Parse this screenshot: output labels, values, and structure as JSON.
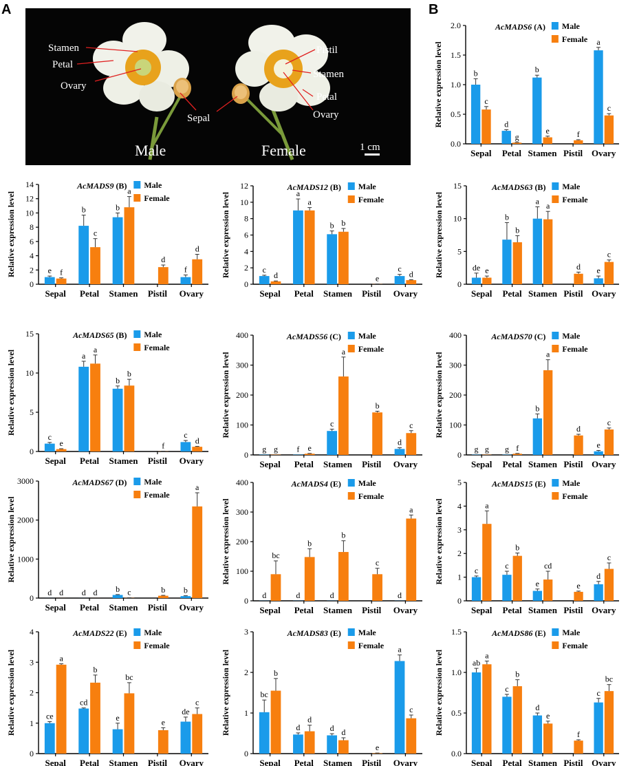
{
  "panel_labels": {
    "a": "A",
    "b": "B"
  },
  "photo": {
    "labels": {
      "stamen_left": "Stamen",
      "petal_left": "Petal",
      "ovary_left": "Ovary",
      "sepal": "Sepal",
      "pistil": "Pistil",
      "stamen_right": "Stamen",
      "petal_right": "Petal",
      "ovary_right": "Ovary",
      "male": "Male",
      "female": "Female",
      "scale": "1 cm"
    }
  },
  "colors": {
    "male": "#1a9bea",
    "female": "#f77f0f"
  },
  "chart_data": [
    {
      "type": "bar",
      "gene": "AcMADS6",
      "cls": "(A)",
      "categories": [
        "Sepal",
        "Petal",
        "Stamen",
        "Pistil",
        "Ovary"
      ],
      "ylim": [
        0,
        2.0
      ],
      "yticks": [
        "0.0",
        "0.5",
        "1.0",
        "1.5",
        "2.0"
      ],
      "ylabel": "Relative expression level",
      "legend": [
        "Male",
        "Female"
      ],
      "series": [
        {
          "name": "Male",
          "values": [
            1.0,
            0.22,
            1.12,
            0,
            1.58
          ],
          "errors": [
            0.1,
            0.02,
            0.04,
            0,
            0.05
          ],
          "labels": [
            "b",
            "d",
            "b",
            "",
            "a"
          ]
        },
        {
          "name": "Female",
          "values": [
            0.58,
            0.02,
            0.11,
            0.06,
            0.48
          ],
          "errors": [
            0.05,
            0.005,
            0.02,
            0.01,
            0.03
          ],
          "labels": [
            "c",
            "g",
            "e",
            "f",
            "c"
          ]
        }
      ]
    },
    {
      "type": "bar",
      "gene": "AcMADS9",
      "cls": "(B)",
      "categories": [
        "Sepal",
        "Petal",
        "Stamen",
        "Pistil",
        "Ovary"
      ],
      "ylim": [
        0,
        14
      ],
      "yticks": [
        "0",
        "2",
        "4",
        "6",
        "8",
        "10",
        "12",
        "14"
      ],
      "ylabel": "Relative expression level",
      "legend": [
        "Male",
        "Female"
      ],
      "series": [
        {
          "name": "Male",
          "values": [
            1.0,
            8.2,
            9.4,
            0,
            1.0
          ],
          "errors": [
            0.15,
            1.5,
            0.6,
            0,
            0.3
          ],
          "labels": [
            "e",
            "b",
            "b",
            "",
            "f"
          ]
        },
        {
          "name": "Female",
          "values": [
            0.8,
            5.2,
            10.8,
            2.4,
            3.5
          ],
          "errors": [
            0.1,
            1.2,
            1.5,
            0.3,
            0.7
          ],
          "labels": [
            "f",
            "c",
            "a",
            "d",
            "d"
          ]
        }
      ]
    },
    {
      "type": "bar",
      "gene": "AcMADS12",
      "cls": "(B)",
      "categories": [
        "Sepal",
        "Petal",
        "Stamen",
        "Pistil",
        "Ovary"
      ],
      "ylim": [
        0,
        12
      ],
      "yticks": [
        "0",
        "2",
        "4",
        "6",
        "8",
        "10",
        "12"
      ],
      "ylabel": "Relative expression level",
      "legend": [
        "Male",
        "Female"
      ],
      "series": [
        {
          "name": "Male",
          "values": [
            1.0,
            9.0,
            6.1,
            0,
            1.0
          ],
          "errors": [
            0.1,
            1.4,
            0.4,
            0,
            0.2
          ],
          "labels": [
            "c",
            "a",
            "b",
            "",
            "c"
          ]
        },
        {
          "name": "Female",
          "values": [
            0.35,
            9.0,
            6.4,
            0.02,
            0.5
          ],
          "errors": [
            0.05,
            0.35,
            0.4,
            0.01,
            0.05
          ],
          "labels": [
            "d",
            "a",
            "b",
            "e",
            "d"
          ]
        }
      ]
    },
    {
      "type": "bar",
      "gene": "AcMADS63",
      "cls": "(B)",
      "categories": [
        "Sepal",
        "Petal",
        "Stamen",
        "Pistil",
        "Ovary"
      ],
      "ylim": [
        0,
        15
      ],
      "yticks": [
        "0",
        "5",
        "10",
        "15"
      ],
      "ylabel": "Relative expression level",
      "legend": [
        "Male",
        "Female"
      ],
      "series": [
        {
          "name": "Male",
          "values": [
            1.0,
            6.8,
            10.0,
            0,
            0.9
          ],
          "errors": [
            0.7,
            2.6,
            1.8,
            0,
            0.35
          ],
          "labels": [
            "de",
            "b",
            "a",
            "",
            "e"
          ]
        },
        {
          "name": "Female",
          "values": [
            1.0,
            6.4,
            9.9,
            1.6,
            3.4
          ],
          "errors": [
            0.25,
            1.0,
            1.2,
            0.25,
            0.3
          ],
          "labels": [
            "e",
            "b",
            "a",
            "d",
            "c"
          ]
        }
      ]
    },
    {
      "type": "bar",
      "gene": "AcMADS65",
      "cls": "(B)",
      "categories": [
        "Sepal",
        "Petal",
        "Stamen",
        "Pistil",
        "Ovary"
      ],
      "ylim": [
        0,
        15
      ],
      "yticks": [
        "0",
        "5",
        "10",
        "15"
      ],
      "ylabel": "Relative expression level",
      "legend": [
        "Male",
        "Female"
      ],
      "series": [
        {
          "name": "Male",
          "values": [
            1.0,
            10.8,
            8.0,
            0,
            1.2
          ],
          "errors": [
            0.15,
            0.7,
            0.35,
            0,
            0.2
          ],
          "labels": [
            "c",
            "a",
            "b",
            "",
            "c"
          ]
        },
        {
          "name": "Female",
          "values": [
            0.3,
            11.2,
            8.4,
            0.02,
            0.6
          ],
          "errors": [
            0.05,
            1.1,
            0.8,
            0.01,
            0.05
          ],
          "labels": [
            "e",
            "a",
            "b",
            "f",
            "d"
          ]
        }
      ]
    },
    {
      "type": "bar",
      "gene": "AcMADS56",
      "cls": "(C)",
      "categories": [
        "Sepal",
        "Petal",
        "Stamen",
        "Pistil",
        "Ovary"
      ],
      "ylim": [
        0,
        400
      ],
      "yticks": [
        "0",
        "100",
        "200",
        "300",
        "400"
      ],
      "ylabel": "Relative expression level",
      "legend": [
        "Male",
        "Female"
      ],
      "series": [
        {
          "name": "Male",
          "values": [
            1,
            1,
            80,
            0,
            20
          ],
          "errors": [
            0,
            0,
            6,
            0,
            4
          ],
          "labels": [
            "g",
            "f",
            "c",
            "",
            "d"
          ]
        },
        {
          "name": "Female",
          "values": [
            1,
            4,
            262,
            142,
            73
          ],
          "errors": [
            0,
            1,
            65,
            4,
            8
          ],
          "labels": [
            "g",
            "e",
            "a",
            "b",
            "c"
          ]
        }
      ]
    },
    {
      "type": "bar",
      "gene": "AcMADS70",
      "cls": "(C)",
      "categories": [
        "Sepal",
        "Petal",
        "Stamen",
        "Pistil",
        "Ovary"
      ],
      "ylim": [
        0,
        400
      ],
      "yticks": [
        "0",
        "100",
        "200",
        "300",
        "400"
      ],
      "ylabel": "Relative expression level",
      "legend": [
        "Male",
        "Female"
      ],
      "series": [
        {
          "name": "Male",
          "values": [
            1,
            1,
            122,
            0,
            12
          ],
          "errors": [
            0,
            0,
            15,
            0,
            3
          ],
          "labels": [
            "g",
            "g",
            "b",
            "",
            "e"
          ]
        },
        {
          "name": "Female",
          "values": [
            1,
            4,
            283,
            65,
            85
          ],
          "errors": [
            0,
            1,
            35,
            4,
            5
          ],
          "labels": [
            "g",
            "f",
            "a",
            "d",
            "c"
          ]
        }
      ]
    },
    {
      "type": "bar",
      "gene": "AcMADS67",
      "cls": "(D)",
      "categories": [
        "Sepal",
        "Petal",
        "Stamen",
        "Pistil",
        "Ovary"
      ],
      "ylim": [
        0,
        3000
      ],
      "yticks": [
        "0",
        "1000",
        "2000",
        "3000"
      ],
      "ylabel": "Relative expression level",
      "legend": [
        "Male",
        "Female"
      ],
      "series": [
        {
          "name": "Male",
          "values": [
            1,
            1,
            80,
            0,
            50
          ],
          "errors": [
            0,
            0,
            10,
            0,
            10
          ],
          "labels": [
            "d",
            "d",
            "b",
            "",
            "b"
          ]
        },
        {
          "name": "Female",
          "values": [
            1,
            1,
            5,
            60,
            2350
          ],
          "errors": [
            0,
            0,
            2,
            10,
            350
          ],
          "labels": [
            "d",
            "d",
            "c",
            "b",
            "a"
          ]
        }
      ]
    },
    {
      "type": "bar",
      "gene": "AcMADS4",
      "cls": "(E)",
      "categories": [
        "Sepal",
        "Petal",
        "Stamen",
        "Pistil",
        "Ovary"
      ],
      "ylim": [
        0,
        400
      ],
      "yticks": [
        "0",
        "100",
        "200",
        "300",
        "400"
      ],
      "ylabel": "Relative expression level",
      "legend": [
        "Male",
        "Female"
      ],
      "series": [
        {
          "name": "Male",
          "values": [
            0.5,
            0.5,
            0.5,
            0,
            0.5
          ],
          "errors": [
            0,
            0,
            0,
            0,
            0
          ],
          "labels": [
            "d",
            "d",
            "d",
            "",
            "d"
          ]
        },
        {
          "name": "Female",
          "values": [
            90,
            148,
            165,
            90,
            278
          ],
          "errors": [
            45,
            28,
            38,
            20,
            12
          ],
          "labels": [
            "bc",
            "b",
            "b",
            "c",
            "a"
          ]
        }
      ]
    },
    {
      "type": "bar",
      "gene": "AcMADS15",
      "cls": "(E)",
      "categories": [
        "Sepal",
        "Petal",
        "Stamen",
        "Pistil",
        "Ovary"
      ],
      "ylim": [
        0,
        5
      ],
      "yticks": [
        "0",
        "1",
        "2",
        "3",
        "4",
        "5"
      ],
      "ylabel": "Relative expression level",
      "legend": [
        "Male",
        "Female"
      ],
      "series": [
        {
          "name": "Male",
          "values": [
            1.0,
            1.1,
            0.42,
            0,
            0.7
          ],
          "errors": [
            0.05,
            0.15,
            0.08,
            0,
            0.12
          ],
          "labels": [
            "c",
            "c",
            "e",
            "",
            "d"
          ]
        },
        {
          "name": "Female",
          "values": [
            3.25,
            1.9,
            0.9,
            0.38,
            1.35
          ],
          "errors": [
            0.55,
            0.12,
            0.35,
            0.03,
            0.25
          ],
          "labels": [
            "a",
            "b",
            "cd",
            "e",
            "c"
          ]
        }
      ]
    },
    {
      "type": "bar",
      "gene": "AcMADS22",
      "cls": "(E)",
      "categories": [
        "Sepal",
        "Petal",
        "Stamen",
        "Pistil",
        "Ovary"
      ],
      "ylim": [
        0,
        4
      ],
      "yticks": [
        "0",
        "1",
        "2",
        "3",
        "4"
      ],
      "ylabel": "Relative expression level",
      "legend": [
        "Male",
        "Female"
      ],
      "series": [
        {
          "name": "Male",
          "values": [
            1.0,
            1.48,
            0.8,
            0,
            1.05
          ],
          "errors": [
            0.05,
            0.02,
            0.2,
            0,
            0.15
          ],
          "labels": [
            "ce",
            "cd",
            "e",
            "",
            "de"
          ]
        },
        {
          "name": "Female",
          "values": [
            2.92,
            2.33,
            1.98,
            0.77,
            1.3
          ],
          "errors": [
            0.03,
            0.25,
            0.35,
            0.08,
            0.2
          ],
          "labels": [
            "a",
            "b",
            "bc",
            "e",
            "c"
          ]
        }
      ]
    },
    {
      "type": "bar",
      "gene": "AcMADS83",
      "cls": "(E)",
      "categories": [
        "Sepal",
        "Petal",
        "Stamen",
        "Pistil",
        "Ovary"
      ],
      "ylim": [
        0,
        3
      ],
      "yticks": [
        "0",
        "1",
        "2",
        "3"
      ],
      "ylabel": "Relative expression level",
      "legend": [
        "Male",
        "Female"
      ],
      "series": [
        {
          "name": "Male",
          "values": [
            1.02,
            0.47,
            0.45,
            0,
            2.28
          ],
          "errors": [
            0.3,
            0.04,
            0.04,
            0,
            0.15
          ],
          "labels": [
            "bc",
            "d",
            "d",
            "",
            "a"
          ]
        },
        {
          "name": "Female",
          "values": [
            1.55,
            0.55,
            0.33,
            0.01,
            0.87
          ],
          "errors": [
            0.3,
            0.15,
            0.06,
            0.005,
            0.08
          ],
          "labels": [
            "b",
            "d",
            "d",
            "e",
            "c"
          ]
        }
      ]
    },
    {
      "type": "bar",
      "gene": "AcMADS86",
      "cls": "(E)",
      "categories": [
        "Sepal",
        "Petal",
        "Stamen",
        "Pistil",
        "Ovary"
      ],
      "ylim": [
        0,
        1.5
      ],
      "yticks": [
        "0.0",
        "0.5",
        "1.0",
        "1.5"
      ],
      "ylabel": "Relative expression level",
      "legend": [
        "Male",
        "Female"
      ],
      "series": [
        {
          "name": "Male",
          "values": [
            1.0,
            0.7,
            0.47,
            0,
            0.63
          ],
          "errors": [
            0.05,
            0.03,
            0.03,
            0,
            0.05
          ],
          "labels": [
            "ab",
            "c",
            "d",
            "",
            "c"
          ]
        },
        {
          "name": "Female",
          "values": [
            1.1,
            0.83,
            0.37,
            0.16,
            0.77
          ],
          "errors": [
            0.04,
            0.08,
            0.03,
            0.01,
            0.08
          ],
          "labels": [
            "a",
            "b",
            "e",
            "f",
            "bc"
          ]
        }
      ]
    }
  ]
}
